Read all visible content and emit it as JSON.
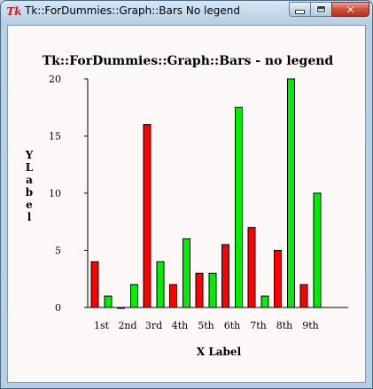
{
  "window": {
    "title": "Tk::ForDummies::Graph::Bars No legend",
    "icon": "tk-icon",
    "buttons": {
      "minimize": "minimize-icon",
      "maximize": "maximize-icon",
      "close": "close-icon",
      "close_glyph": "✕"
    }
  },
  "chart_data": {
    "type": "bar",
    "title": "Tk::ForDummies::Graph::Bars - no legend",
    "xlabel": "X Label",
    "ylabel": "Y Label",
    "ylim": [
      0,
      20
    ],
    "yticks": [
      0,
      5,
      10,
      15,
      20
    ],
    "grid": false,
    "legend": "none",
    "categories": [
      "1st",
      "2nd",
      "3rd",
      "4th",
      "5th",
      "6th",
      "7th",
      "8th",
      "9th"
    ],
    "series": [
      {
        "color": "#ff0000",
        "values": [
          4,
          0,
          16,
          2,
          3,
          5.5,
          7,
          5,
          2
        ]
      },
      {
        "color": "#00ee00",
        "values": [
          1,
          2,
          4,
          6,
          3,
          17.5,
          1,
          20,
          10
        ]
      }
    ]
  }
}
